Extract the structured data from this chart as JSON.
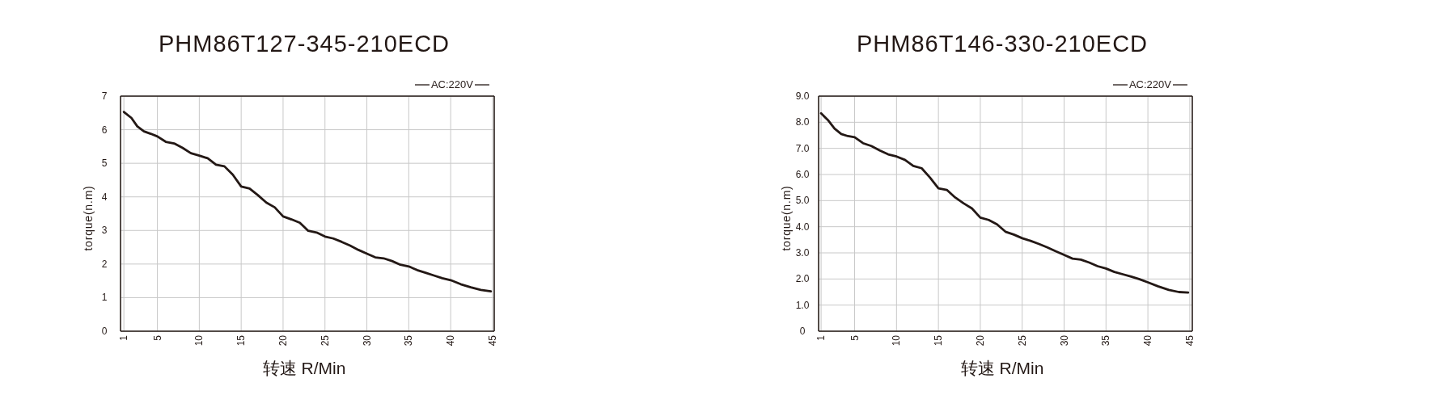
{
  "chart_data": [
    {
      "type": "line",
      "title": "PHM86T127-345-210ECD",
      "xlabel": "转速 R/Min",
      "ylabel": "torque(n.m)",
      "legend": "top right",
      "grid": true,
      "x": [
        1,
        1.9,
        2.6,
        3.4,
        4.2,
        5,
        6,
        7,
        8,
        9,
        10,
        11,
        12,
        13,
        14,
        15,
        16,
        17,
        18,
        19,
        20,
        21,
        22,
        23,
        24,
        25,
        26,
        27,
        28,
        29,
        30,
        31,
        32,
        33,
        34,
        35,
        36,
        37,
        38,
        39,
        40,
        41.2,
        42.4,
        43.6,
        44.8
      ],
      "series": [
        {
          "name": "AC:220V",
          "color": "#231815",
          "values": [
            6.53,
            6.35,
            6.1,
            5.95,
            5.88,
            5.8,
            5.64,
            5.59,
            5.46,
            5.3,
            5.23,
            5.15,
            4.96,
            4.91,
            4.66,
            4.31,
            4.25,
            4.05,
            3.83,
            3.69,
            3.42,
            3.33,
            3.23,
            2.99,
            2.94,
            2.82,
            2.76,
            2.66,
            2.55,
            2.42,
            2.31,
            2.2,
            2.17,
            2.09,
            1.98,
            1.93,
            1.82,
            1.74,
            1.66,
            1.58,
            1.52,
            1.4,
            1.31,
            1.23,
            1.19
          ]
        }
      ],
      "xlim": [
        0.6,
        45.2
      ],
      "xticks": [
        1,
        5,
        10,
        15,
        20,
        25,
        30,
        35,
        40,
        45
      ],
      "ylim": [
        0,
        7
      ],
      "yticks": [
        0,
        1,
        2,
        3,
        4,
        5,
        6,
        7
      ]
    },
    {
      "type": "line",
      "title": "PHM86T146-330-210ECD",
      "xlabel": "转速 R/Min",
      "ylabel": "torque(n.m)",
      "legend": "top right",
      "grid": true,
      "x": [
        1,
        1.8,
        2.6,
        3.4,
        4.2,
        5,
        6,
        7,
        8,
        9,
        10,
        11,
        12,
        13,
        14,
        15,
        16,
        17,
        18,
        19,
        20,
        21,
        22,
        23,
        24,
        25,
        26,
        27,
        28,
        29,
        30,
        31,
        32,
        33,
        34,
        35,
        36,
        37,
        38,
        39,
        40,
        41.2,
        42.5,
        43.7,
        44.8
      ],
      "series": [
        {
          "name": "AC:220V",
          "color": "#231815",
          "values": [
            8.34,
            8.09,
            7.76,
            7.55,
            7.47,
            7.43,
            7.2,
            7.09,
            6.92,
            6.77,
            6.69,
            6.56,
            6.33,
            6.24,
            5.88,
            5.47,
            5.41,
            5.12,
            4.9,
            4.7,
            4.35,
            4.26,
            4.09,
            3.81,
            3.7,
            3.56,
            3.46,
            3.34,
            3.21,
            3.06,
            2.92,
            2.78,
            2.74,
            2.63,
            2.49,
            2.4,
            2.27,
            2.18,
            2.09,
            1.99,
            1.87,
            1.72,
            1.58,
            1.5,
            1.48
          ]
        }
      ],
      "xlim": [
        0.7,
        45.3
      ],
      "xticks": [
        1,
        5,
        10,
        15,
        20,
        25,
        30,
        35,
        40,
        45
      ],
      "ylim": [
        0,
        9
      ],
      "yticks": [
        0,
        {
          "value": 1,
          "label": "1.0"
        },
        {
          "value": 2,
          "label": "2.0"
        },
        {
          "value": 3,
          "label": "3.0"
        },
        {
          "value": 4,
          "label": "4.0"
        },
        {
          "value": 5,
          "label": "5.0"
        },
        {
          "value": 6,
          "label": "6.0"
        },
        {
          "value": 7,
          "label": "7.0"
        },
        {
          "value": 8,
          "label": "8.0"
        },
        {
          "value": 9,
          "label": "9.0"
        }
      ]
    }
  ]
}
